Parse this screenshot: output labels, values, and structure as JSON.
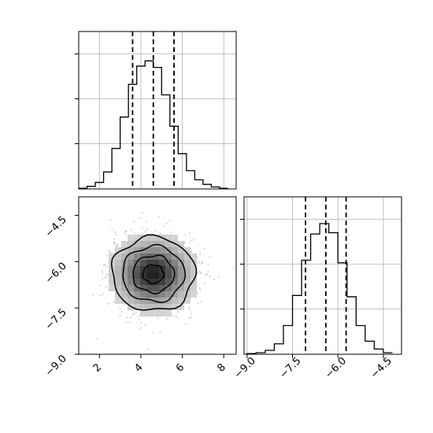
{
  "chart_data": [
    {
      "type": "histogram",
      "panel": "top-left",
      "x": [
        1.0,
        1.4,
        1.8,
        2.2,
        2.6,
        3.0,
        3.4,
        3.8,
        4.2,
        4.6,
        5.0,
        5.4,
        5.8,
        6.2,
        6.6,
        7.0,
        7.4,
        7.8,
        8.2
      ],
      "values": [
        0.005,
        0.02,
        0.05,
        0.13,
        0.31,
        0.55,
        0.8,
        0.94,
        0.98,
        0.93,
        0.72,
        0.48,
        0.27,
        0.14,
        0.07,
        0.035,
        0.015,
        0.005
      ],
      "quantile_lines": [
        3.6,
        4.6,
        5.6
      ],
      "xlim": [
        1.0,
        8.6
      ],
      "grid": true
    },
    {
      "type": "heatmap",
      "panel": "bottom-left",
      "subtype": "2d-histogram with contours",
      "x_center": 4.6,
      "y_center": -6.4,
      "x_spread": 1.0,
      "y_spread": 0.6,
      "contour_levels": 4,
      "xlim": [
        1.0,
        8.6
      ],
      "ylim": [
        -9.0,
        -3.9
      ],
      "xticks": [
        "2",
        "4",
        "6",
        "8"
      ],
      "yticks": [
        "−4.5",
        "−6.0",
        "−7.5",
        "−9.0"
      ]
    },
    {
      "type": "histogram",
      "panel": "bottom-right",
      "x": [
        -9.0,
        -8.7,
        -8.4,
        -8.1,
        -7.8,
        -7.5,
        -7.2,
        -6.9,
        -6.6,
        -6.3,
        -6.0,
        -5.7,
        -5.4,
        -5.1,
        -4.8,
        -4.5,
        -4.2
      ],
      "values": [
        0.005,
        0.012,
        0.03,
        0.08,
        0.22,
        0.45,
        0.72,
        0.92,
        1.0,
        0.93,
        0.7,
        0.44,
        0.22,
        0.1,
        0.04,
        0.012
      ],
      "quantile_lines": [
        -7.07,
        -6.4,
        -5.73
      ],
      "xlim": [
        -9.1,
        -3.9
      ],
      "xticks": [
        "−9.0",
        "−7.5",
        "−6.0",
        "−4.5"
      ],
      "grid": true
    }
  ]
}
